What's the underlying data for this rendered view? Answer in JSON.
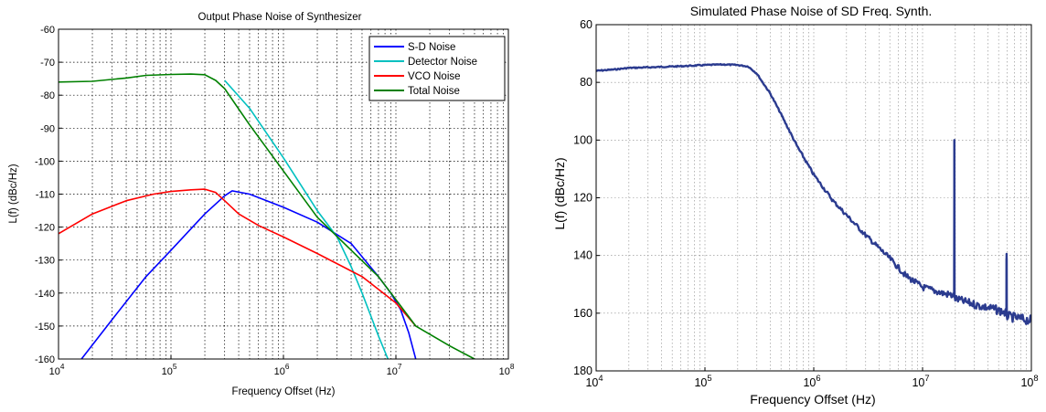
{
  "chart_data": [
    {
      "type": "line",
      "title": "Output Phase Noise of Synthesizer",
      "xlabel": "Frequency Offset (Hz)",
      "ylabel": "L(f) (dBc/Hz)",
      "xscale": "log",
      "xlim": [
        10000,
        100000000
      ],
      "ylim": [
        -160,
        -60
      ],
      "xticks": [
        {
          "base": "10",
          "exp": "4"
        },
        {
          "base": "10",
          "exp": "5"
        },
        {
          "base": "10",
          "exp": "6"
        },
        {
          "base": "10",
          "exp": "7"
        },
        {
          "base": "10",
          "exp": "8"
        }
      ],
      "yticks": [
        "-60",
        "-70",
        "-80",
        "-90",
        "-100",
        "-110",
        "-120",
        "-130",
        "-140",
        "-150",
        "-160"
      ],
      "grid": true,
      "legend_position": "top-right",
      "series": [
        {
          "name": "S-D Noise",
          "color": "#0000ff",
          "x": [
            16000,
            30000,
            60000,
            100000,
            200000,
            300000,
            350000,
            500000,
            1000000,
            2000000,
            4000000,
            7000000,
            9000000,
            11000000,
            13000000,
            15000000
          ],
          "y": [
            -160,
            -148,
            -135,
            -127,
            -116,
            -110.5,
            -109,
            -110,
            -114,
            -118.5,
            -125,
            -135,
            -140,
            -145,
            -152,
            -160
          ]
        },
        {
          "name": "Detector Noise",
          "color": "#00c0c0",
          "x": [
            300000,
            500000,
            1000000,
            2000000,
            3000000,
            4000000,
            5000000,
            6000000,
            7000000,
            8500000
          ],
          "y": [
            -75.5,
            -84,
            -99,
            -115,
            -123,
            -132,
            -140,
            -147,
            -153,
            -160
          ]
        },
        {
          "name": "VCO Noise",
          "color": "#ff0000",
          "x": [
            10000,
            20000,
            40000,
            70000,
            100000,
            150000,
            200000,
            250000,
            300000,
            400000,
            600000,
            1000000,
            2000000,
            5000000,
            10000000,
            15000000
          ],
          "y": [
            -122,
            -116,
            -112,
            -110,
            -109.2,
            -108.7,
            -108.5,
            -109.5,
            -112,
            -116,
            -119.5,
            -123,
            -128,
            -135,
            -143,
            -150
          ]
        },
        {
          "name": "Total Noise",
          "color": "#008000",
          "x": [
            10000,
            20000,
            40000,
            60000,
            100000,
            150000,
            200000,
            250000,
            300000,
            500000,
            1000000,
            2000000,
            4000000,
            7000000,
            10000000,
            15000000,
            30000000,
            50000000
          ],
          "y": [
            -76,
            -75.8,
            -74.8,
            -74,
            -73.7,
            -73.6,
            -73.8,
            -75.5,
            -78,
            -89,
            -103,
            -117,
            -127,
            -135,
            -142,
            -150,
            -156,
            -160
          ]
        }
      ]
    },
    {
      "type": "line",
      "title": "Simulated Phase Noise of SD Freq. Synth.",
      "xlabel": "Frequency Offset (Hz)",
      "ylabel": "L(f) (dBc/Hz)",
      "xscale": "log",
      "xlim": [
        10000,
        100000000
      ],
      "ylim": [
        60,
        180
      ],
      "yreversed": true,
      "xticks": [
        {
          "base": "10",
          "exp": "4"
        },
        {
          "base": "10",
          "exp": "5"
        },
        {
          "base": "10",
          "exp": "6"
        },
        {
          "base": "10",
          "exp": "7"
        },
        {
          "base": "10",
          "exp": "8"
        }
      ],
      "yticks": [
        "60",
        "80",
        "100",
        "120",
        "140",
        "160",
        "180"
      ],
      "grid": true,
      "series": [
        {
          "color": "#2b3b8f",
          "x": [
            10000,
            15000,
            20000,
            30000,
            50000,
            70000,
            100000,
            150000,
            200000,
            250000,
            300000,
            400000,
            500000,
            700000,
            1000000,
            1500000,
            2000000,
            3000000,
            5000000,
            7000000,
            10000000,
            15000000,
            19500000,
            19600000,
            19700000,
            20000000,
            30000000,
            50000000,
            59000000,
            59200000,
            59400000,
            60000000,
            80000000,
            100000000
          ],
          "y": [
            76,
            75.5,
            75,
            74.8,
            74.5,
            74.3,
            74,
            73.8,
            74,
            74.5,
            77,
            84,
            91,
            102,
            112,
            121,
            126,
            133,
            141,
            147,
            151,
            153,
            154,
            100,
            154,
            155,
            157,
            159,
            160,
            141,
            160,
            161,
            162,
            162.5
          ],
          "noise": true
        },
        {
          "color": "#2b3b8f",
          "x": [
            19600000,
            19600000
          ],
          "y": [
            100,
            154
          ]
        },
        {
          "color": "#2b3b8f",
          "x": [
            59200000,
            59200000
          ],
          "y": [
            141,
            160
          ]
        }
      ]
    }
  ]
}
